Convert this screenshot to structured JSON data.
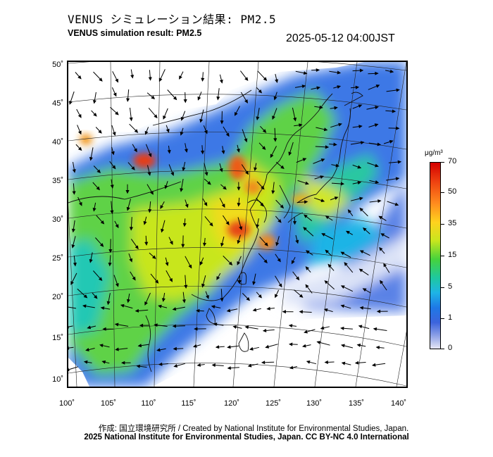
{
  "title_jp": "VENUS シミュレーション結果: PM2.5",
  "title_en": "VENUS simulation result: PM2.5",
  "timestamp": "2025-05-12 04:00JST",
  "map": {
    "latitude_labels": [
      "50˚",
      "45˚",
      "40˚",
      "35˚",
      "30˚",
      "25˚",
      "20˚",
      "15˚",
      "10˚"
    ],
    "longitude_labels": [
      "100˚",
      "105˚",
      "110˚",
      "115˚",
      "120˚",
      "125˚",
      "130˚",
      "135˚",
      "140˚"
    ]
  },
  "colorbar": {
    "unit": "μg/m³",
    "labels": [
      "70",
      "50",
      "35",
      "15",
      "5",
      "1",
      "0"
    ],
    "colors": [
      "#d40000",
      "#ff8c1e",
      "#ffd21e",
      "#46d23c",
      "#1eb4e6",
      "#3c64dc",
      "#e6e6f5"
    ]
  },
  "credits": {
    "line1": "作成: 国立環境研究所 / Created by National Institute for Environmental Studies, Japan.",
    "line2": "2025 National Institute for Environmental Studies, Japan. CC BY-NC 4.0 International"
  }
}
